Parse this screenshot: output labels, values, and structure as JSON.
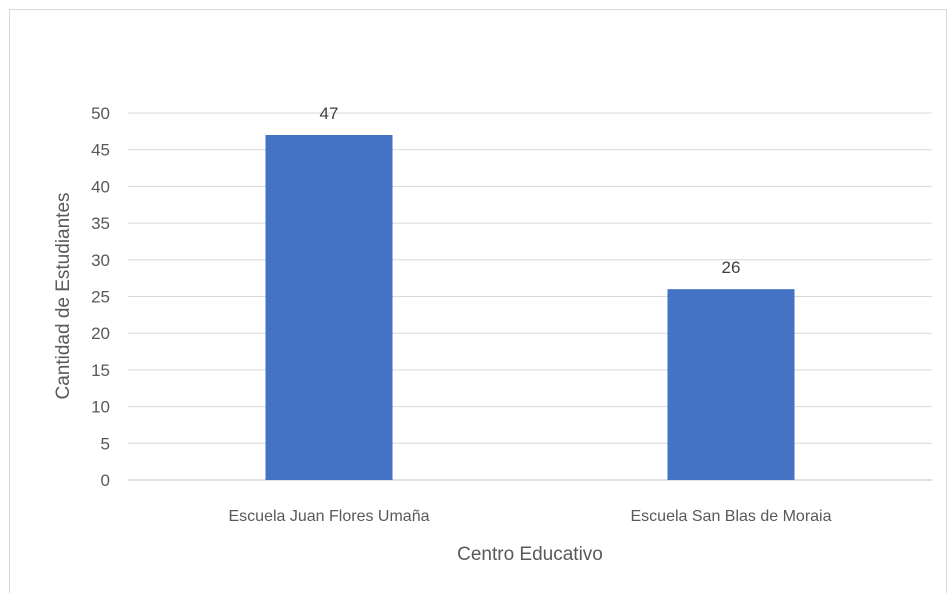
{
  "chart_data": {
    "type": "bar",
    "categories": [
      "Escuela Juan Flores Umaña",
      "Escuela San Blas de Moraia"
    ],
    "values": [
      47,
      26
    ],
    "data_labels": [
      "47",
      "26"
    ],
    "title": "",
    "xlabel": "Centro Educativo",
    "ylabel": "Cantidad de Estudiantes",
    "ylim": [
      0,
      50
    ],
    "yticks": [
      0,
      5,
      10,
      15,
      20,
      25,
      30,
      35,
      40,
      45,
      50
    ],
    "ytick_labels": [
      "0",
      "5",
      "10",
      "15",
      "20",
      "25",
      "30",
      "35",
      "40",
      "45",
      "50"
    ],
    "grid": true,
    "legend": "none",
    "bar_color": "#4472C4",
    "grid_color": "#d9d9d9"
  }
}
